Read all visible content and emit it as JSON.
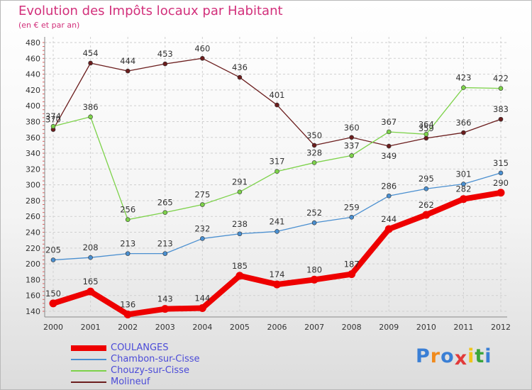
{
  "title": "Evolution des Impôts locaux par Habitant",
  "subtitle": "(en € et par an)",
  "logo": {
    "letters": [
      "P",
      "r",
      "o",
      "x",
      "i",
      "t",
      "i"
    ],
    "colors": [
      "#3a7fd5",
      "#f08a1c",
      "#3a7fd5",
      "#e23a3a",
      "#f0c51c",
      "#3aa53a",
      "#3a7fd5"
    ]
  },
  "chart_data": {
    "type": "line",
    "title": "Evolution des Impôts locaux par Habitant",
    "subtitle": "(en € et par an)",
    "x": [
      "2000",
      "2001",
      "2002",
      "2003",
      "2004",
      "2005",
      "2006",
      "2007",
      "2008",
      "2009",
      "2010",
      "2011",
      "2012"
    ],
    "ylim": [
      140,
      480
    ],
    "yticks": [
      140,
      160,
      180,
      200,
      220,
      240,
      260,
      280,
      300,
      320,
      340,
      360,
      380,
      400,
      420,
      440,
      460,
      480
    ],
    "grid": true,
    "legend_position": "bottom-left",
    "series": [
      {
        "name": "COULANGES",
        "color": "#ee0000",
        "values": [
          150,
          165,
          136,
          143,
          144,
          185,
          174,
          180,
          187,
          244,
          262,
          282,
          290
        ],
        "label_offsets": [
          -1,
          -1,
          -1,
          -1,
          -1,
          -1,
          -1,
          -1,
          -1,
          -1,
          -1,
          -1,
          -1
        ]
      },
      {
        "name": "Chambon-sur-Cisse",
        "color": "#4a8fd0",
        "values": [
          205,
          208,
          213,
          213,
          232,
          238,
          241,
          252,
          259,
          286,
          295,
          301,
          315
        ],
        "label_offsets": [
          -1,
          -1,
          -1,
          -1,
          -1,
          -1,
          -1,
          -1,
          -1,
          -1,
          -1,
          -1,
          -1
        ]
      },
      {
        "name": "Chouzy-sur-Cisse",
        "color": "#7dd24a",
        "values": [
          374,
          386,
          256,
          265,
          275,
          291,
          317,
          328,
          337,
          367,
          364,
          423,
          422
        ],
        "label_offsets": [
          -1,
          -1,
          -1,
          -1,
          -1,
          -1,
          -1,
          -1,
          -1,
          -1,
          -1,
          -1,
          -1
        ]
      },
      {
        "name": "Molineuf",
        "color": "#6b1d1d",
        "values": [
          370,
          454,
          444,
          453,
          460,
          436,
          401,
          350,
          360,
          349,
          359,
          366,
          383
        ],
        "label_offsets": [
          -1,
          -1,
          -1,
          -1,
          -1,
          -1,
          -1,
          -1,
          -1,
          1,
          -1,
          -1,
          -1
        ]
      }
    ]
  }
}
